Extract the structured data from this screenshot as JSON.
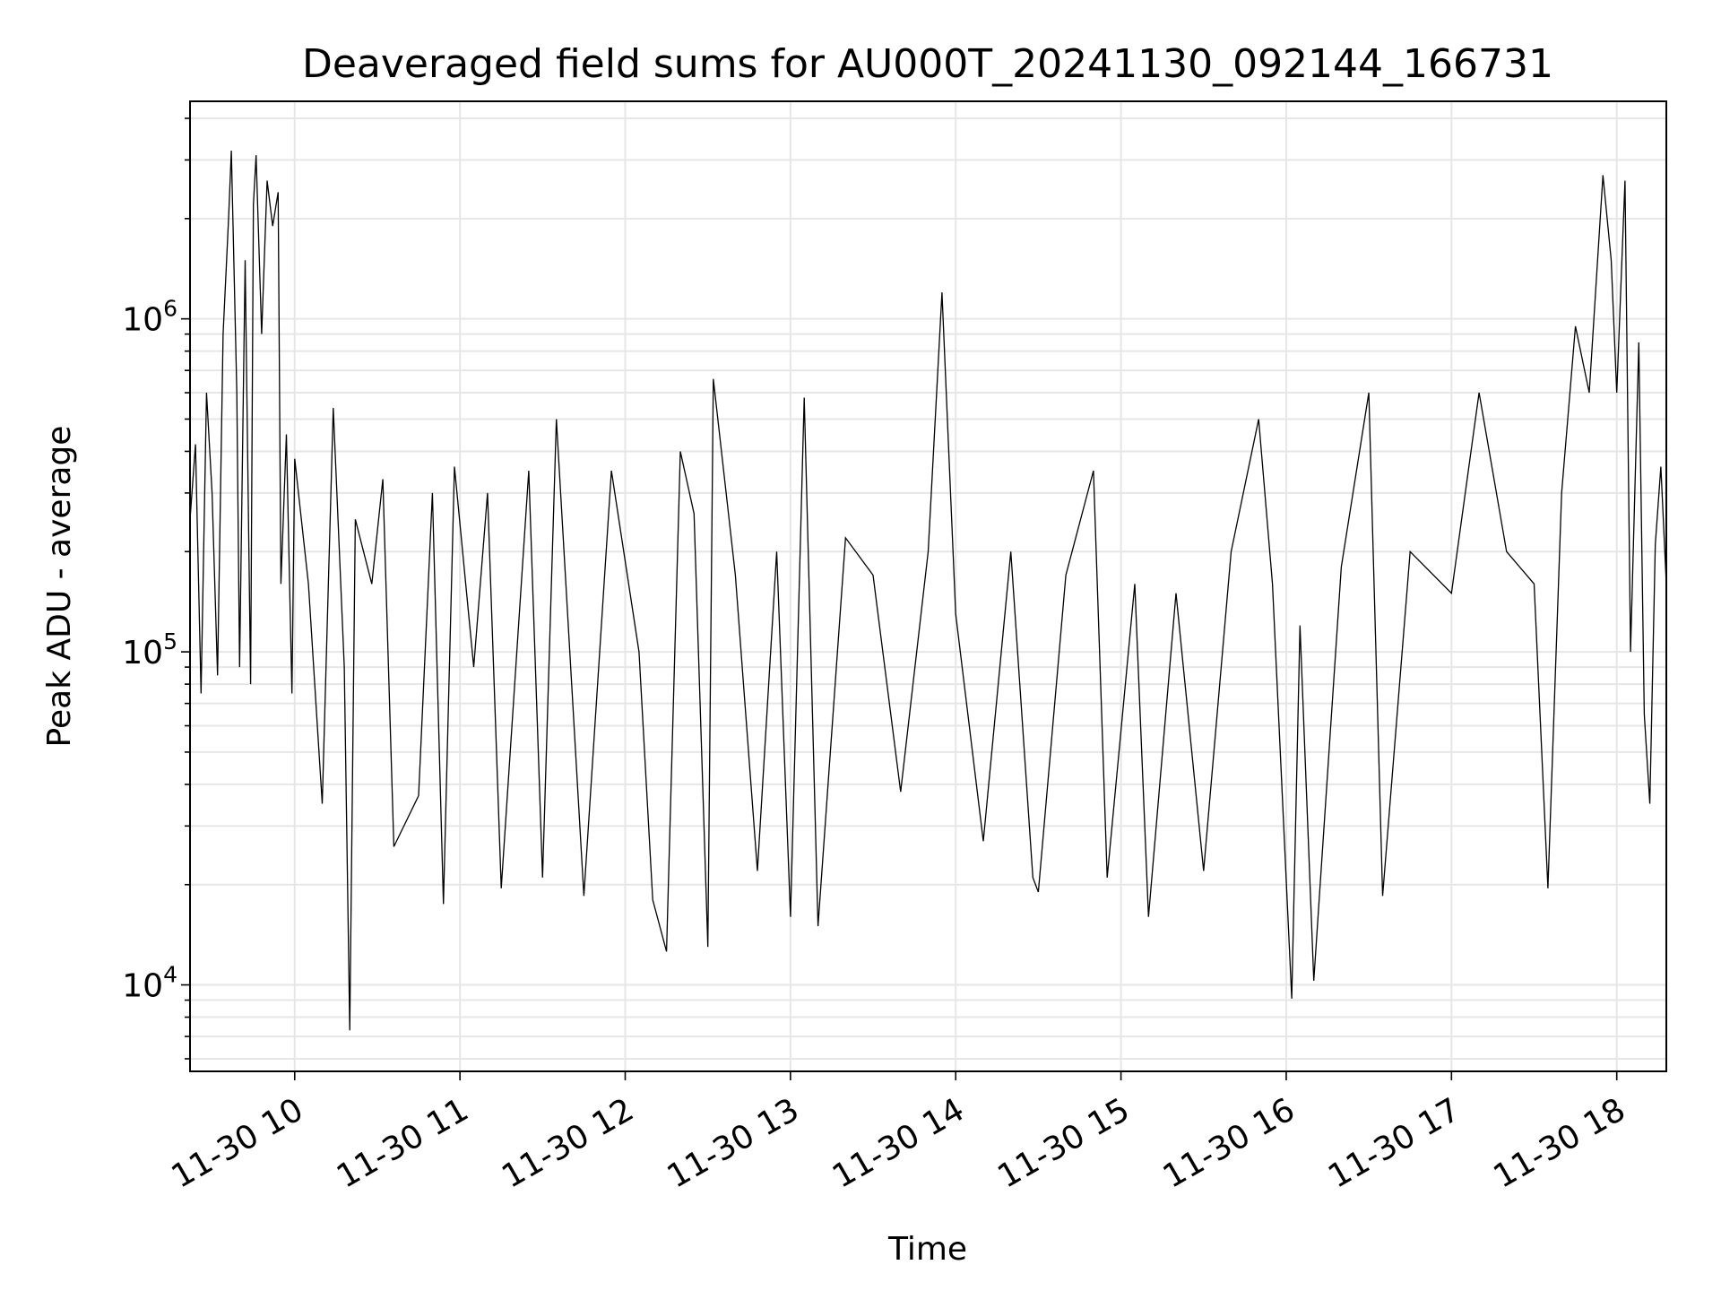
{
  "chart_data": {
    "type": "line",
    "title": "Deaveraged field sums for AU000T_20241130_092144_166731",
    "xlabel": "Time",
    "ylabel": "Peak ADU - average",
    "yscale": "log",
    "grid": true,
    "line_color": "#000000",
    "grid_color": "#e6e6e6",
    "xlim": [
      "2024-11-30 09:22",
      "2024-11-30 18:18"
    ],
    "ylim": [
      5500,
      4500000
    ],
    "x_ticks": [
      "11-30 10",
      "11-30 11",
      "11-30 12",
      "11-30 13",
      "11-30 14",
      "11-30 15",
      "11-30 16",
      "11-30 17",
      "11-30 18"
    ],
    "x_tick_times": [
      "2024-11-30 10:00",
      "2024-11-30 11:00",
      "2024-11-30 12:00",
      "2024-11-30 13:00",
      "2024-11-30 14:00",
      "2024-11-30 15:00",
      "2024-11-30 16:00",
      "2024-11-30 17:00",
      "2024-11-30 18:00"
    ],
    "y_ticks": [
      {
        "value": 10000,
        "base": "10",
        "exp": "4"
      },
      {
        "value": 100000,
        "base": "10",
        "exp": "5"
      },
      {
        "value": 1000000,
        "base": "10",
        "exp": "6"
      }
    ],
    "series": [
      {
        "points": [
          [
            "2024-11-30 09:22",
            250000
          ],
          [
            "2024-11-30 09:24",
            420000
          ],
          [
            "2024-11-30 09:26",
            75000
          ],
          [
            "2024-11-30 09:28",
            600000
          ],
          [
            "2024-11-30 09:30",
            300000
          ],
          [
            "2024-11-30 09:32",
            85000
          ],
          [
            "2024-11-30 09:34",
            900000
          ],
          [
            "2024-11-30 09:36",
            2000000
          ],
          [
            "2024-11-30 09:37",
            3200000
          ],
          [
            "2024-11-30 09:39",
            600000
          ],
          [
            "2024-11-30 09:40",
            90000
          ],
          [
            "2024-11-30 09:42",
            1500000
          ],
          [
            "2024-11-30 09:44",
            80000
          ],
          [
            "2024-11-30 09:45",
            2200000
          ],
          [
            "2024-11-30 09:46",
            3100000
          ],
          [
            "2024-11-30 09:48",
            900000
          ],
          [
            "2024-11-30 09:50",
            2600000
          ],
          [
            "2024-11-30 09:52",
            1900000
          ],
          [
            "2024-11-30 09:54",
            2400000
          ],
          [
            "2024-11-30 09:55",
            160000
          ],
          [
            "2024-11-30 09:57",
            450000
          ],
          [
            "2024-11-30 09:59",
            75000
          ],
          [
            "2024-11-30 10:00",
            380000
          ],
          [
            "2024-11-30 10:05",
            160000
          ],
          [
            "2024-11-30 10:10",
            35000
          ],
          [
            "2024-11-30 10:14",
            540000
          ],
          [
            "2024-11-30 10:18",
            90000
          ],
          [
            "2024-11-30 10:20",
            7300
          ],
          [
            "2024-11-30 10:22",
            250000
          ],
          [
            "2024-11-30 10:28",
            160000
          ],
          [
            "2024-11-30 10:32",
            330000
          ],
          [
            "2024-11-30 10:36",
            26000
          ],
          [
            "2024-11-30 10:45",
            37000
          ],
          [
            "2024-11-30 10:50",
            300000
          ],
          [
            "2024-11-30 10:54",
            17500
          ],
          [
            "2024-11-30 10:58",
            360000
          ],
          [
            "2024-11-30 11:05",
            90000
          ],
          [
            "2024-11-30 11:10",
            300000
          ],
          [
            "2024-11-30 11:15",
            19500
          ],
          [
            "2024-11-30 11:25",
            350000
          ],
          [
            "2024-11-30 11:30",
            21000
          ],
          [
            "2024-11-30 11:35",
            500000
          ],
          [
            "2024-11-30 11:45",
            18500
          ],
          [
            "2024-11-30 11:55",
            350000
          ],
          [
            "2024-11-30 12:05",
            100000
          ],
          [
            "2024-11-30 12:10",
            18000
          ],
          [
            "2024-11-30 12:15",
            12600
          ],
          [
            "2024-11-30 12:20",
            400000
          ],
          [
            "2024-11-30 12:25",
            260000
          ],
          [
            "2024-11-30 12:30",
            13000
          ],
          [
            "2024-11-30 12:32",
            660000
          ],
          [
            "2024-11-30 12:40",
            170000
          ],
          [
            "2024-11-30 12:48",
            22000
          ],
          [
            "2024-11-30 12:55",
            200000
          ],
          [
            "2024-11-30 13:00",
            16000
          ],
          [
            "2024-11-30 13:05",
            580000
          ],
          [
            "2024-11-30 13:10",
            15000
          ],
          [
            "2024-11-30 13:20",
            220000
          ],
          [
            "2024-11-30 13:30",
            170000
          ],
          [
            "2024-11-30 13:40",
            38000
          ],
          [
            "2024-11-30 13:50",
            200000
          ],
          [
            "2024-11-30 13:55",
            1200000
          ],
          [
            "2024-11-30 14:00",
            130000
          ],
          [
            "2024-11-30 14:10",
            27000
          ],
          [
            "2024-11-30 14:20",
            200000
          ],
          [
            "2024-11-30 14:28",
            21000
          ],
          [
            "2024-11-30 14:30",
            19000
          ],
          [
            "2024-11-30 14:40",
            170000
          ],
          [
            "2024-11-30 14:50",
            350000
          ],
          [
            "2024-11-30 14:55",
            21000
          ],
          [
            "2024-11-30 15:05",
            160000
          ],
          [
            "2024-11-30 15:10",
            16000
          ],
          [
            "2024-11-30 15:20",
            150000
          ],
          [
            "2024-11-30 15:30",
            22000
          ],
          [
            "2024-11-30 15:40",
            200000
          ],
          [
            "2024-11-30 15:50",
            500000
          ],
          [
            "2024-11-30 15:55",
            160000
          ],
          [
            "2024-11-30 16:02",
            9100
          ],
          [
            "2024-11-30 16:05",
            120000
          ],
          [
            "2024-11-30 16:10",
            10300
          ],
          [
            "2024-11-30 16:20",
            180000
          ],
          [
            "2024-11-30 16:30",
            600000
          ],
          [
            "2024-11-30 16:35",
            18500
          ],
          [
            "2024-11-30 16:45",
            200000
          ],
          [
            "2024-11-30 17:00",
            150000
          ],
          [
            "2024-11-30 17:10",
            600000
          ],
          [
            "2024-11-30 17:20",
            200000
          ],
          [
            "2024-11-30 17:30",
            160000
          ],
          [
            "2024-11-30 17:35",
            19500
          ],
          [
            "2024-11-30 17:40",
            300000
          ],
          [
            "2024-11-30 17:45",
            950000
          ],
          [
            "2024-11-30 17:50",
            600000
          ],
          [
            "2024-11-30 17:55",
            2700000
          ],
          [
            "2024-11-30 17:58",
            1500000
          ],
          [
            "2024-11-30 18:00",
            600000
          ],
          [
            "2024-11-30 18:03",
            2600000
          ],
          [
            "2024-11-30 18:05",
            100000
          ],
          [
            "2024-11-30 18:08",
            850000
          ],
          [
            "2024-11-30 18:10",
            65000
          ],
          [
            "2024-11-30 18:12",
            35000
          ],
          [
            "2024-11-30 18:14",
            210000
          ],
          [
            "2024-11-30 18:16",
            360000
          ],
          [
            "2024-11-30 18:18",
            160000
          ]
        ]
      }
    ]
  }
}
